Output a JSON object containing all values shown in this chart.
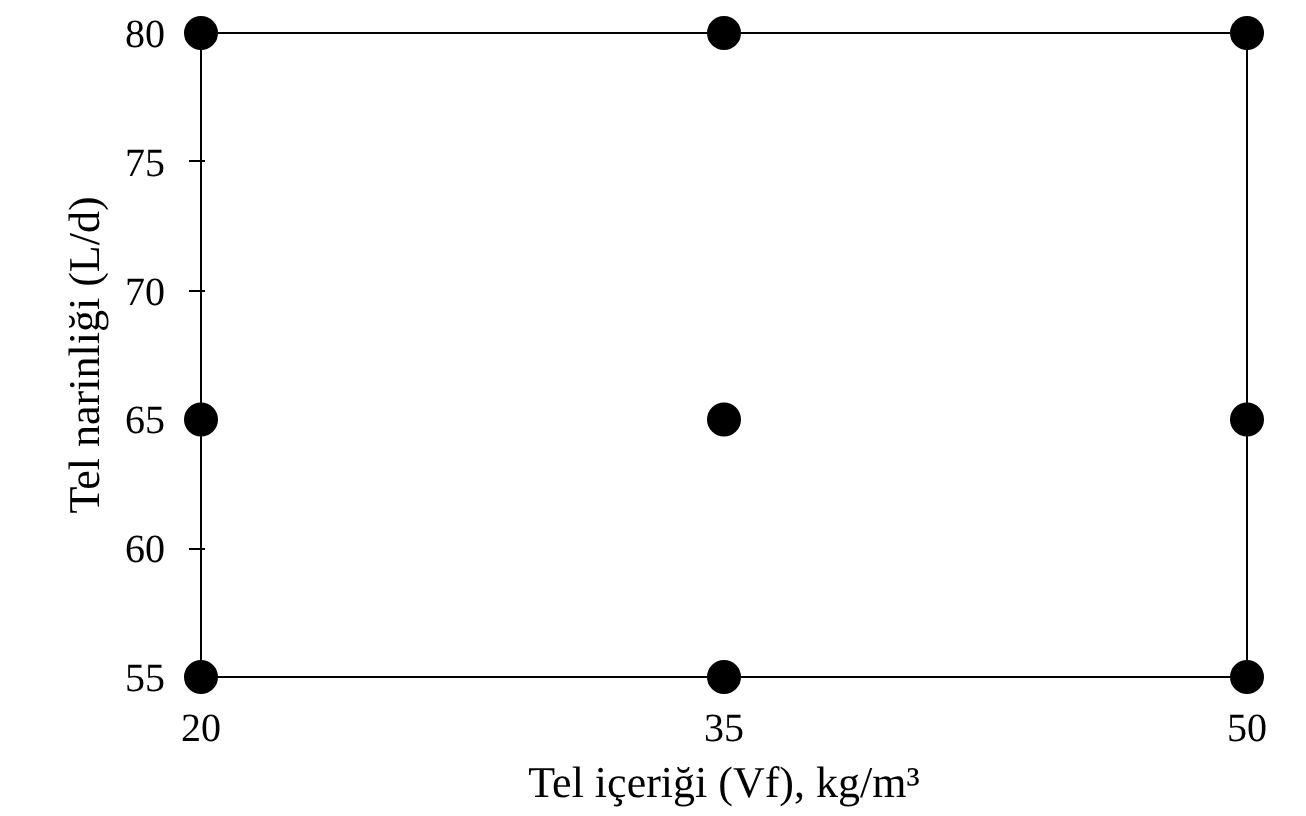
{
  "chart_data": {
    "type": "scatter",
    "xlabel": "Tel içeriği (Vf), kg/m³",
    "ylabel": "Tel narinliği (L/d)",
    "x": [
      20,
      35,
      50,
      20,
      35,
      50,
      20,
      35,
      50
    ],
    "values": [
      80,
      80,
      80,
      65,
      65,
      65,
      55,
      55,
      55
    ],
    "color": "#000000",
    "marker": "circle",
    "xlim": [
      20,
      50
    ],
    "xticks": [
      20,
      35,
      50
    ],
    "ylim": [
      55,
      80
    ],
    "yticks": [
      55,
      60,
      65,
      70,
      75,
      80
    ],
    "grid": false
  }
}
